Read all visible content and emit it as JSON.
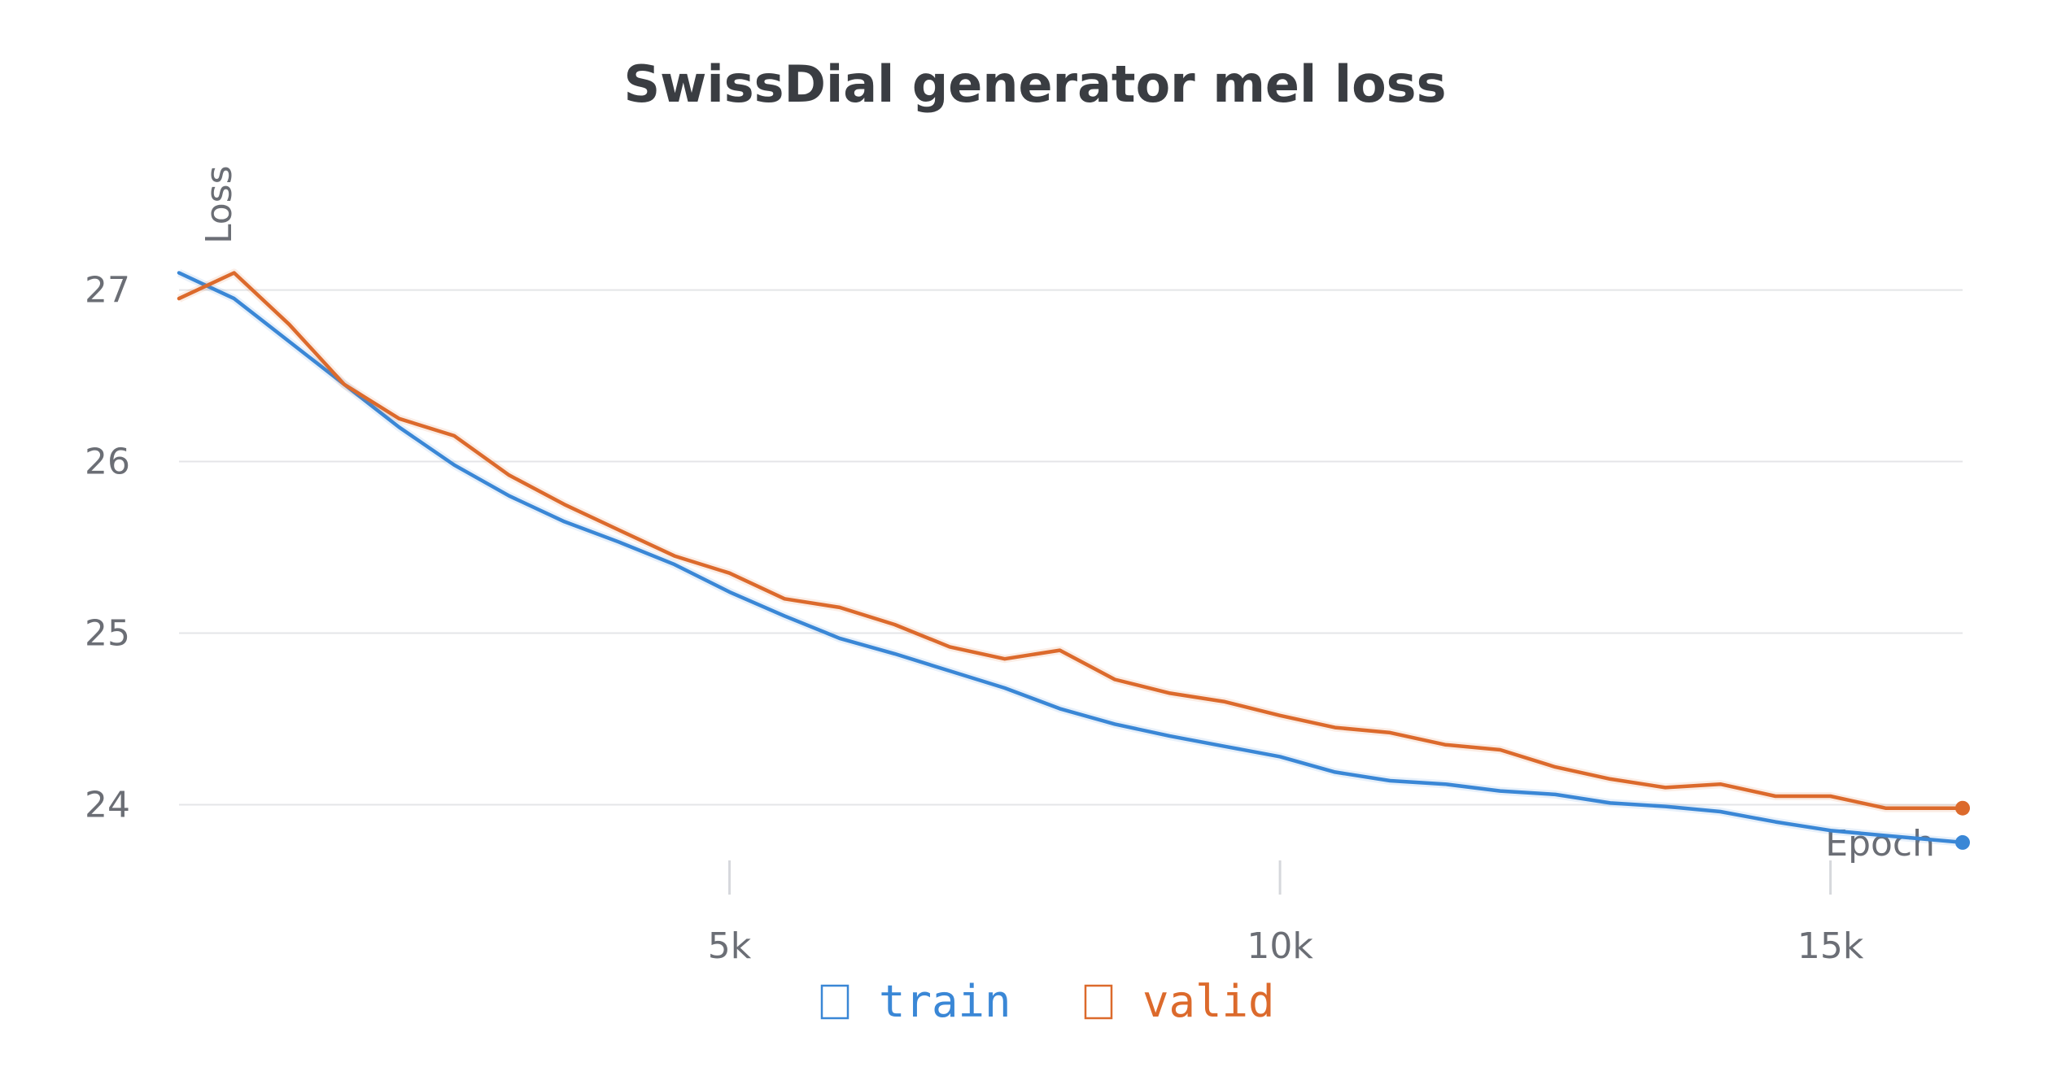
{
  "chart_data": {
    "type": "line",
    "title": "SwissDial generator mel loss",
    "xlabel": "Epoch",
    "ylabel": "Loss",
    "xlim": [
      0,
      16200
    ],
    "ylim": [
      23.5,
      27.6
    ],
    "x_ticks": [
      {
        "value": 5000,
        "label": "5k"
      },
      {
        "value": 10000,
        "label": "10k"
      },
      {
        "value": 15000,
        "label": "15k"
      }
    ],
    "y_ticks": [
      {
        "value": 24,
        "label": "24"
      },
      {
        "value": 25,
        "label": "25"
      },
      {
        "value": 26,
        "label": "26"
      },
      {
        "value": 27,
        "label": "27"
      }
    ],
    "grid": true,
    "legend_position": "bottom-center",
    "series": [
      {
        "name": "train",
        "color": "#3a87d6",
        "x": [
          0,
          500,
          1000,
          1500,
          2000,
          2500,
          3000,
          3500,
          4000,
          4500,
          5000,
          5500,
          6000,
          6500,
          7000,
          7500,
          8000,
          8500,
          9000,
          9500,
          10000,
          10500,
          11000,
          11500,
          12000,
          12500,
          13000,
          13500,
          14000,
          14500,
          15000,
          15500,
          16200
        ],
        "y": [
          27.1,
          26.95,
          26.7,
          26.45,
          26.2,
          25.98,
          25.8,
          25.65,
          25.53,
          25.4,
          25.24,
          25.1,
          24.97,
          24.88,
          24.78,
          24.68,
          24.56,
          24.47,
          24.4,
          24.34,
          24.28,
          24.19,
          24.14,
          24.12,
          24.08,
          24.06,
          24.01,
          23.99,
          23.96,
          23.9,
          23.85,
          23.82,
          23.78
        ]
      },
      {
        "name": "valid",
        "color": "#dc6a2c",
        "x": [
          0,
          500,
          1000,
          1500,
          2000,
          2500,
          3000,
          3500,
          4000,
          4500,
          5000,
          5500,
          6000,
          6500,
          7000,
          7500,
          8000,
          8500,
          9000,
          9500,
          10000,
          10500,
          11000,
          11500,
          12000,
          12500,
          13000,
          13500,
          14000,
          14500,
          15000,
          15500,
          16200
        ],
        "y": [
          26.95,
          27.1,
          26.8,
          26.45,
          26.25,
          26.15,
          25.92,
          25.75,
          25.6,
          25.45,
          25.35,
          25.2,
          25.15,
          25.05,
          24.92,
          24.85,
          24.9,
          24.73,
          24.65,
          24.6,
          24.52,
          24.45,
          24.42,
          24.35,
          24.32,
          24.22,
          24.15,
          24.1,
          24.12,
          24.05,
          24.05,
          23.98,
          23.98
        ]
      }
    ]
  }
}
